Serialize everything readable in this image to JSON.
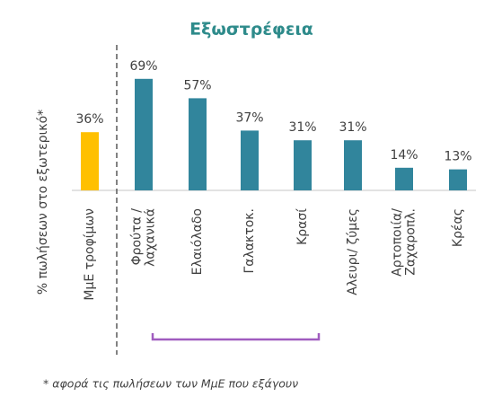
{
  "chart_data": {
    "type": "bar",
    "title": "Εξωστρέφεια",
    "y_label": "% πωλήσεων στο εξωτερικό*",
    "categories": [
      "ΜμΕ τροφίμων",
      "Φρούτα /\nλαχανικά",
      "Ελαιόλαδο",
      "Γαλακτοκ.",
      "Κρασί",
      "Αλευρι/ ζύμες",
      "Αρτοποιία/\nΖαχαροπλ.",
      "Κρέας"
    ],
    "values": [
      36,
      69,
      57,
      37,
      31,
      31,
      14,
      13
    ],
    "value_labels": [
      "36%",
      "69%",
      "57%",
      "37%",
      "31%",
      "31%",
      "14%",
      "13%"
    ],
    "colors": [
      "#ffc000",
      "#31859c",
      "#31859c",
      "#31859c",
      "#31859c",
      "#31859c",
      "#31859c",
      "#31859c"
    ],
    "footnote": "* αφορά τις πωλήσεων των ΜμΕ που εξάγουν"
  }
}
